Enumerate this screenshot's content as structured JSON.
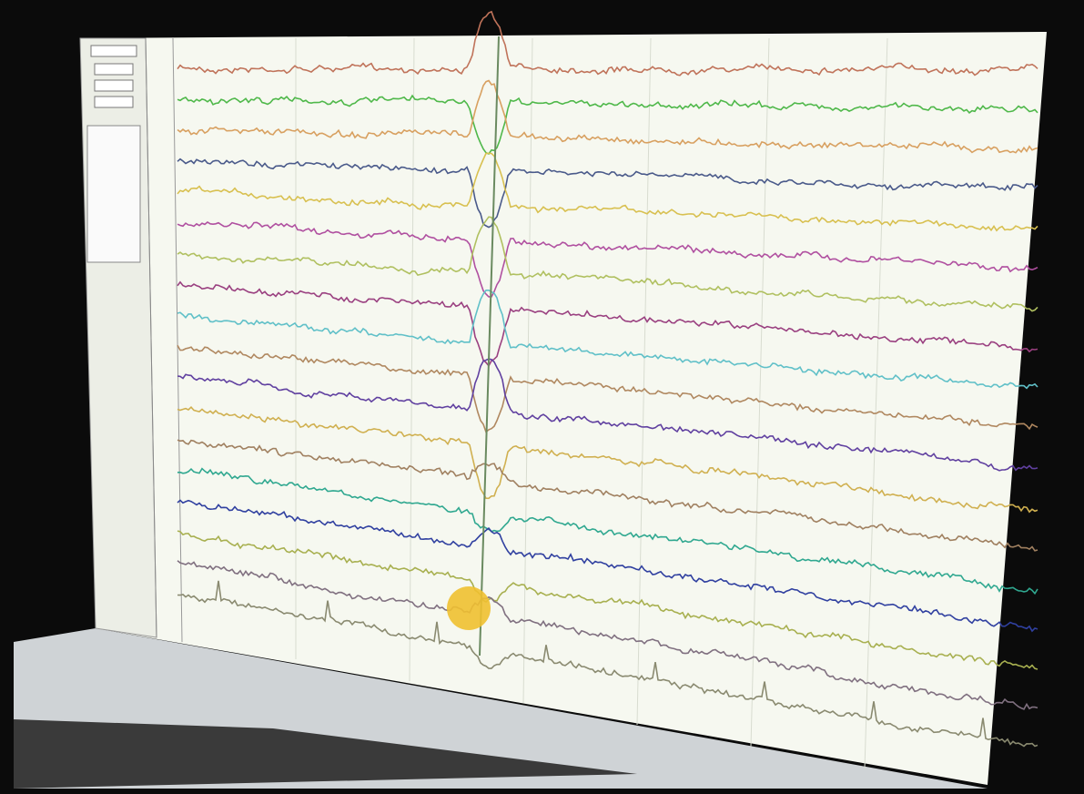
{
  "eeg_view": {
    "trace_colors": [
      "#c0735a",
      "#4fb84a",
      "#d8a060",
      "#4a5a8a",
      "#d8c050",
      "#b050a0",
      "#b0c060",
      "#9a4080",
      "#60c0c8",
      "#b08860",
      "#6040a0",
      "#d0b050",
      "#a08060",
      "#30a890",
      "#3040a0",
      "#a8b050",
      "#807080",
      "#8a8a70"
    ]
  }
}
